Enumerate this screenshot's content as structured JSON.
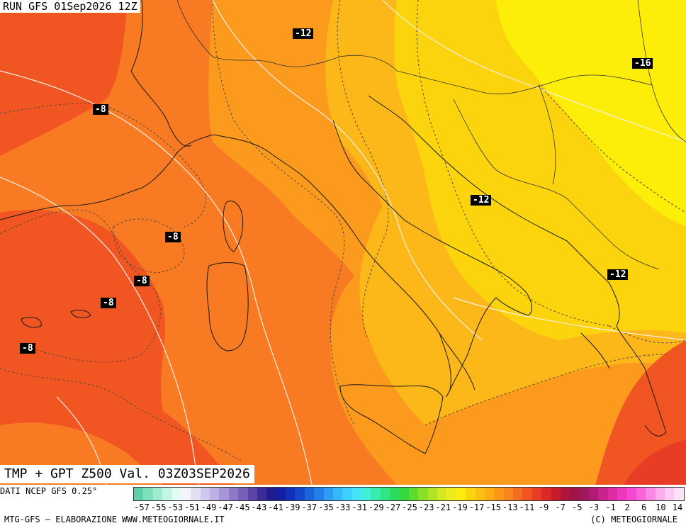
{
  "header": {
    "run_label": "RUN GFS 01Sep2026 12Z"
  },
  "map": {
    "title": "TMP + GPT Z500 Val. 03Z03SEP2026",
    "contour_labels": [
      "-12",
      "-16",
      "-8",
      "-12",
      "-8",
      "-8",
      "-8",
      "-8",
      "-12"
    ],
    "fill_colors": {
      "deep_orange": "#f05522",
      "orange": "#f87a22",
      "light_orange": "#fc9a1e",
      "amber": "#fcb818",
      "gold": "#fcd40e",
      "yellow": "#fcee08"
    }
  },
  "legend": {
    "source_label": "DATI NCEP GFS 0.25°",
    "tick_labels": [
      "-57",
      "-55",
      "-53",
      "-51",
      "-49",
      "-47",
      "-45",
      "-43",
      "-41",
      "-39",
      "-37",
      "-35",
      "-33",
      "-31",
      "-29",
      "-27",
      "-25",
      "-23",
      "-21",
      "-19",
      "-17",
      "-15",
      "-13",
      "-11",
      "-9",
      "-7",
      "-5",
      "-3",
      "-1",
      "2",
      "6",
      "10",
      "14"
    ],
    "swatches": [
      "#5fd0a8",
      "#7fe0bc",
      "#a0ecd2",
      "#c4f4e4",
      "#e4fbf4",
      "#f4f4fc",
      "#e4e0f4",
      "#d0c8ec",
      "#bcb0e4",
      "#a894d8",
      "#9078c8",
      "#7860b8",
      "#5a44a8",
      "#3c2c98",
      "#201c90",
      "#1020a0",
      "#1030b8",
      "#1448cc",
      "#1c64dc",
      "#2480e8",
      "#2c9cf4",
      "#34b8f8",
      "#3cd0fc",
      "#44e4fc",
      "#40f0d8",
      "#38ecb0",
      "#30e488",
      "#2cdc60",
      "#34d83c",
      "#5cdc2c",
      "#88e028",
      "#b0e424",
      "#d4e820",
      "#ecec1c",
      "#fcec10",
      "#fcd40e",
      "#fcc010",
      "#fcac14",
      "#fc9818",
      "#f8841c",
      "#f46c20",
      "#f05422",
      "#e83c24",
      "#dc2826",
      "#c81c2c",
      "#b01438",
      "#a01448",
      "#a0185c",
      "#b01c74",
      "#c8248c",
      "#dc2ca4",
      "#ec38bc",
      "#f448d0",
      "#f864dc",
      "#f888e4",
      "#fcacec",
      "#fccaf4",
      "#fce4f8"
    ]
  },
  "footer": {
    "left": "MTG-GFS – ELABORAZIONE WWW.METEOGIORNALE.IT",
    "right": "(C) METEOGIORNALE"
  }
}
